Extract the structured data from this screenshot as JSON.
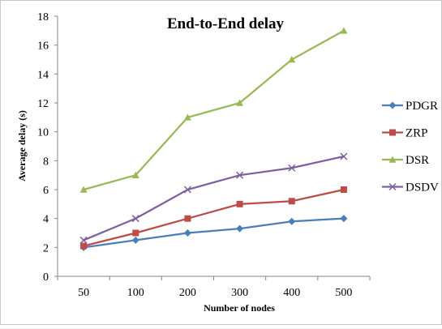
{
  "chart_data": {
    "type": "line",
    "title": "End-to-End delay",
    "xlabel": "Number of nodes",
    "ylabel": "Average delay (s)",
    "categories": [
      "50",
      "100",
      "200",
      "300",
      "400",
      "500"
    ],
    "ylim": [
      0,
      18
    ],
    "yticks": [
      0,
      2,
      4,
      6,
      8,
      10,
      12,
      14,
      16,
      18
    ],
    "grid": false,
    "legend_position": "right",
    "series": [
      {
        "name": "PDGR",
        "color": "#4a7ebb",
        "marker": "diamond",
        "values": [
          2.0,
          2.5,
          3.0,
          3.3,
          3.8,
          4.0
        ]
      },
      {
        "name": "ZRP",
        "color": "#be4b48",
        "marker": "square",
        "values": [
          2.1,
          3.0,
          4.0,
          5.0,
          5.2,
          6.0
        ]
      },
      {
        "name": "DSR",
        "color": "#98b954",
        "marker": "triangle",
        "values": [
          6.0,
          7.0,
          11.0,
          12.0,
          15.0,
          17.0
        ]
      },
      {
        "name": "DSDV",
        "color": "#7d60a0",
        "marker": "x",
        "values": [
          2.5,
          4.0,
          6.0,
          7.0,
          7.5,
          8.3
        ]
      }
    ]
  }
}
